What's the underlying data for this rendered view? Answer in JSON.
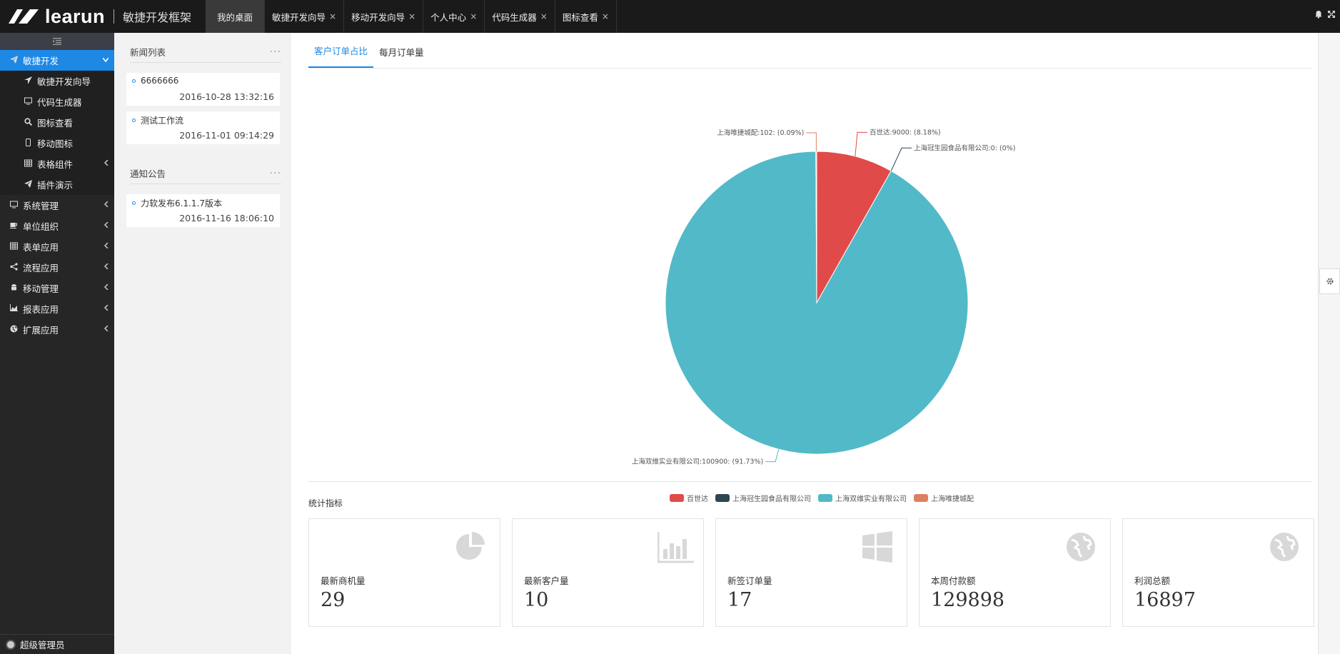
{
  "brand": {
    "name": "learun",
    "subtitle": "敏捷开发框架"
  },
  "tabs": [
    {
      "label": "我的桌面",
      "closable": false,
      "active": true
    },
    {
      "label": "敏捷开发向导",
      "closable": true
    },
    {
      "label": "移动开发向导",
      "closable": true
    },
    {
      "label": "个人中心",
      "closable": true
    },
    {
      "label": "代码生成器",
      "closable": true
    },
    {
      "label": "图标查看",
      "closable": true
    }
  ],
  "icons": {
    "bell": "bell-icon",
    "fullscreen": "fullscreen-icon",
    "close": "×"
  },
  "sidebar": {
    "items": [
      {
        "label": "敏捷开发",
        "icon": "paper-plane-icon",
        "active": true,
        "expanded": true
      },
      {
        "label": "敏捷开发向导",
        "icon": "location-arrow-icon",
        "sub": true
      },
      {
        "label": "代码生成器",
        "icon": "desktop-icon",
        "sub": true
      },
      {
        "label": "图标查看",
        "icon": "search-icon",
        "sub": true
      },
      {
        "label": "移动图标",
        "icon": "mobile-icon",
        "sub": true
      },
      {
        "label": "表格组件",
        "icon": "table-icon",
        "sub": true,
        "hasChildren": true
      },
      {
        "label": "插件演示",
        "icon": "paper-plane-icon",
        "sub": true
      },
      {
        "label": "系统管理",
        "icon": "desktop-icon",
        "hasChildren": true
      },
      {
        "label": "单位组织",
        "icon": "coffee-icon",
        "hasChildren": true
      },
      {
        "label": "表单应用",
        "icon": "table-icon",
        "hasChildren": true
      },
      {
        "label": "流程应用",
        "icon": "share-icon",
        "hasChildren": true
      },
      {
        "label": "移动管理",
        "icon": "android-icon",
        "hasChildren": true
      },
      {
        "label": "报表应用",
        "icon": "area-chart-icon",
        "hasChildren": true
      },
      {
        "label": "扩展应用",
        "icon": "globe-icon",
        "hasChildren": true
      }
    ],
    "user": "超级管理员"
  },
  "news": {
    "title": "新闻列表",
    "items": [
      {
        "title": "6666666",
        "date": "2016-10-28 13:32:16"
      },
      {
        "title": "测试工作流",
        "date": "2016-11-01 09:14:29"
      }
    ]
  },
  "notices": {
    "title": "通知公告",
    "items": [
      {
        "title": "力软发布6.1.1.7版本",
        "date": "2016-11-16 18:06:10"
      }
    ]
  },
  "chartTabs": [
    {
      "label": "客户订单占比",
      "active": true
    },
    {
      "label": "每月订单量"
    }
  ],
  "chart_data": {
    "type": "pie",
    "slices": [
      {
        "name": "百世达",
        "value": 9000,
        "percent": 8.18,
        "color": "#e04b4a",
        "label": "百世达:9000: (8.18%)"
      },
      {
        "name": "上海冠生园食品有限公司",
        "value": 0,
        "percent": 0,
        "color": "#2f4554",
        "label": "上海冠生园食品有限公司:0: (0%)"
      },
      {
        "name": "上海双维实业有限公司",
        "value": 100900,
        "percent": 91.73,
        "color": "#52b9c8",
        "label": "上海双维实业有限公司:100900: (91.73%)"
      },
      {
        "name": "上海唯捷城配",
        "value": 102,
        "percent": 0.09,
        "color": "#dd8060",
        "label": "上海唯捷城配:102: (0.09%)"
      }
    ],
    "legend_position": "bottom"
  },
  "stats": {
    "title": "统计指标",
    "cards": [
      {
        "label": "最新商机量",
        "value": "29",
        "icon": "pie-chart-icon"
      },
      {
        "label": "最新客户量",
        "value": "10",
        "icon": "bar-chart-icon"
      },
      {
        "label": "新签订单量",
        "value": "17",
        "icon": "windows-icon"
      },
      {
        "label": "本周付款额",
        "value": "129898",
        "icon": "globe-icon"
      },
      {
        "label": "利润总额",
        "value": "16897",
        "icon": "globe-icon"
      }
    ]
  }
}
